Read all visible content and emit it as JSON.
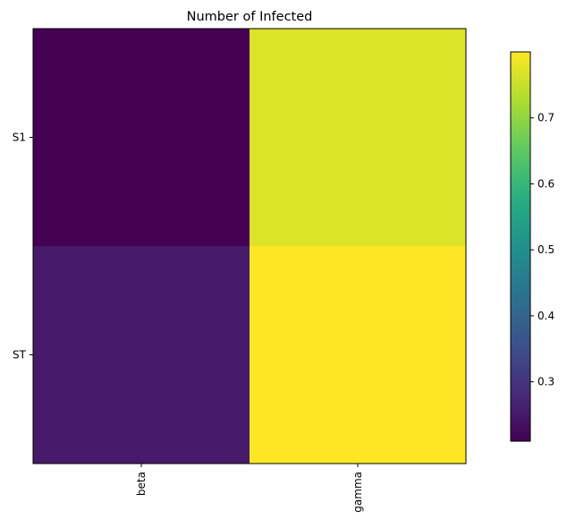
{
  "chart_data": {
    "type": "heatmap",
    "title": "Number of Infected",
    "xlabel": "",
    "ylabel": "",
    "x_categories": [
      "beta",
      "gamma"
    ],
    "y_categories": [
      "S1",
      "ST"
    ],
    "values": [
      [
        0.21,
        0.77
      ],
      [
        0.25,
        0.8
      ]
    ],
    "colormap": "viridis",
    "colorbar": {
      "range": [
        0.21,
        0.8
      ],
      "ticks": [
        0.3,
        0.4,
        0.5,
        0.6,
        0.7
      ],
      "tick_labels": [
        "0.3",
        "0.4",
        "0.5",
        "0.6",
        "0.7"
      ]
    },
    "grid": false,
    "x_tick_rotation": "vertical"
  }
}
